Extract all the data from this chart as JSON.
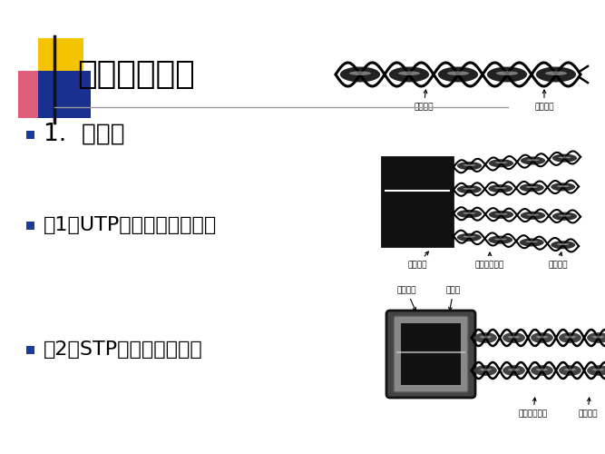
{
  "bg_color": "#ffffff",
  "title": "二、传输介质",
  "title_fontsize": 26,
  "item1_text": "1.  双绞线",
  "item1_fontsize": 19,
  "item2_text": "（1）UTP（非屏蔽双绞线）",
  "item2_fontsize": 16,
  "item3_text": "（2）STP（屏蔽双绞线）",
  "item3_fontsize": 16,
  "bullet_color": "#1a3a9c",
  "yellow_color": "#f5c400",
  "red_color": "#d94060",
  "blue_color": "#1a3090",
  "line_color": "#999999",
  "img1_label1": "绝缘外皮",
  "img1_label2": "铜芯导体",
  "img2_label1": "塑料护套",
  "img2_label2": "色码绝缘外皮",
  "img2_label3": "铜芯导体",
  "img3_label1": "塑料纱套",
  "img3_label2": "屏蔽层",
  "img3_label3": "色码绝缘外皮",
  "img3_label4": "铜芯导体"
}
